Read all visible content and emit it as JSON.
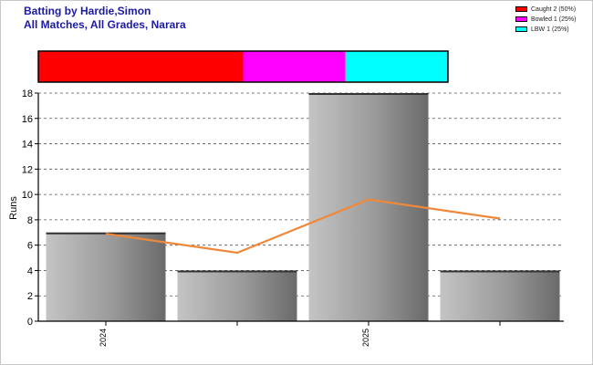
{
  "header": {
    "title_line1": "Batting by Hardie,Simon",
    "title_line2": "All Matches, All Grades, Narara"
  },
  "legend": [
    {
      "label": "Caught 2 (50%)",
      "color": "#ff0000",
      "fraction": 0.5
    },
    {
      "label": "Bowled 1 (25%)",
      "color": "#ff00ff",
      "fraction": 0.25
    },
    {
      "label": "LBW 1 (25%)",
      "color": "#00ffff",
      "fraction": 0.25
    }
  ],
  "chart_data": {
    "type": "bar",
    "ylabel": "Runs",
    "ylim": [
      0,
      18
    ],
    "yticks": [
      "0",
      "2",
      "4",
      "6",
      "8",
      "10",
      "12",
      "14",
      "16",
      "18"
    ],
    "categories": [
      "2024",
      "",
      "2025",
      ""
    ],
    "values": [
      7,
      4,
      18,
      4
    ],
    "trend": {
      "type": "line",
      "color": "#f0883a",
      "values": [
        6.9,
        5.4,
        9.6,
        8.1
      ]
    },
    "grid": true,
    "legend_position": "top-right"
  }
}
